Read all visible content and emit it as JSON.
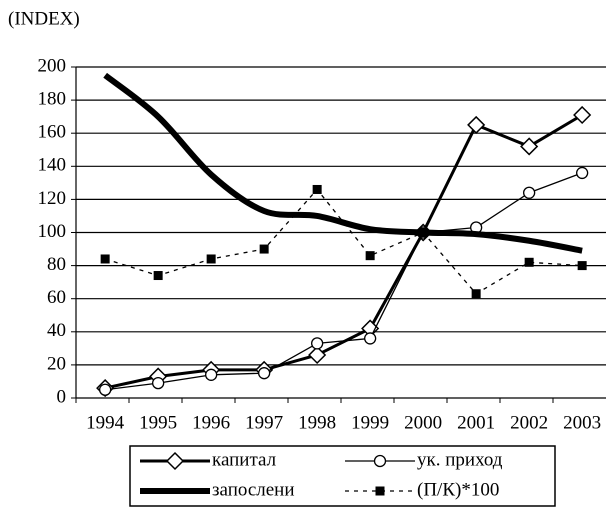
{
  "chart_data": {
    "type": "line",
    "title": "(INDEX)",
    "categories": [
      "1994",
      "1995",
      "1996",
      "1997",
      "1998",
      "1999",
      "2000",
      "2001",
      "2002",
      "2003"
    ],
    "ylim": [
      0,
      200
    ],
    "yticks": [
      0,
      20,
      40,
      60,
      80,
      100,
      120,
      140,
      160,
      180,
      200
    ],
    "grid": true,
    "legend": "bottom",
    "series": [
      {
        "name": "капитал",
        "color": "#000000",
        "marker": "diamond",
        "line_width": 3,
        "dash": false,
        "values": [
          6,
          13,
          17,
          17,
          26,
          42,
          100,
          165,
          152,
          171
        ]
      },
      {
        "name": "ук. приход",
        "color": "#000000",
        "marker": "circle",
        "line_width": 1.3,
        "dash": false,
        "values": [
          5,
          9,
          14,
          15,
          33,
          36,
          100,
          103,
          124,
          136
        ]
      },
      {
        "name": "запослени",
        "color": "#000000",
        "marker": "none",
        "line_width": 6,
        "dash": false,
        "values": [
          195,
          170,
          135,
          113,
          110,
          102,
          100,
          99,
          95,
          89
        ]
      },
      {
        "name": "(П/К)*100",
        "color": "#000000",
        "marker": "square",
        "line_width": 1.3,
        "dash": true,
        "values": [
          84,
          74,
          84,
          90,
          126,
          86,
          100,
          63,
          82,
          80
        ]
      }
    ]
  }
}
